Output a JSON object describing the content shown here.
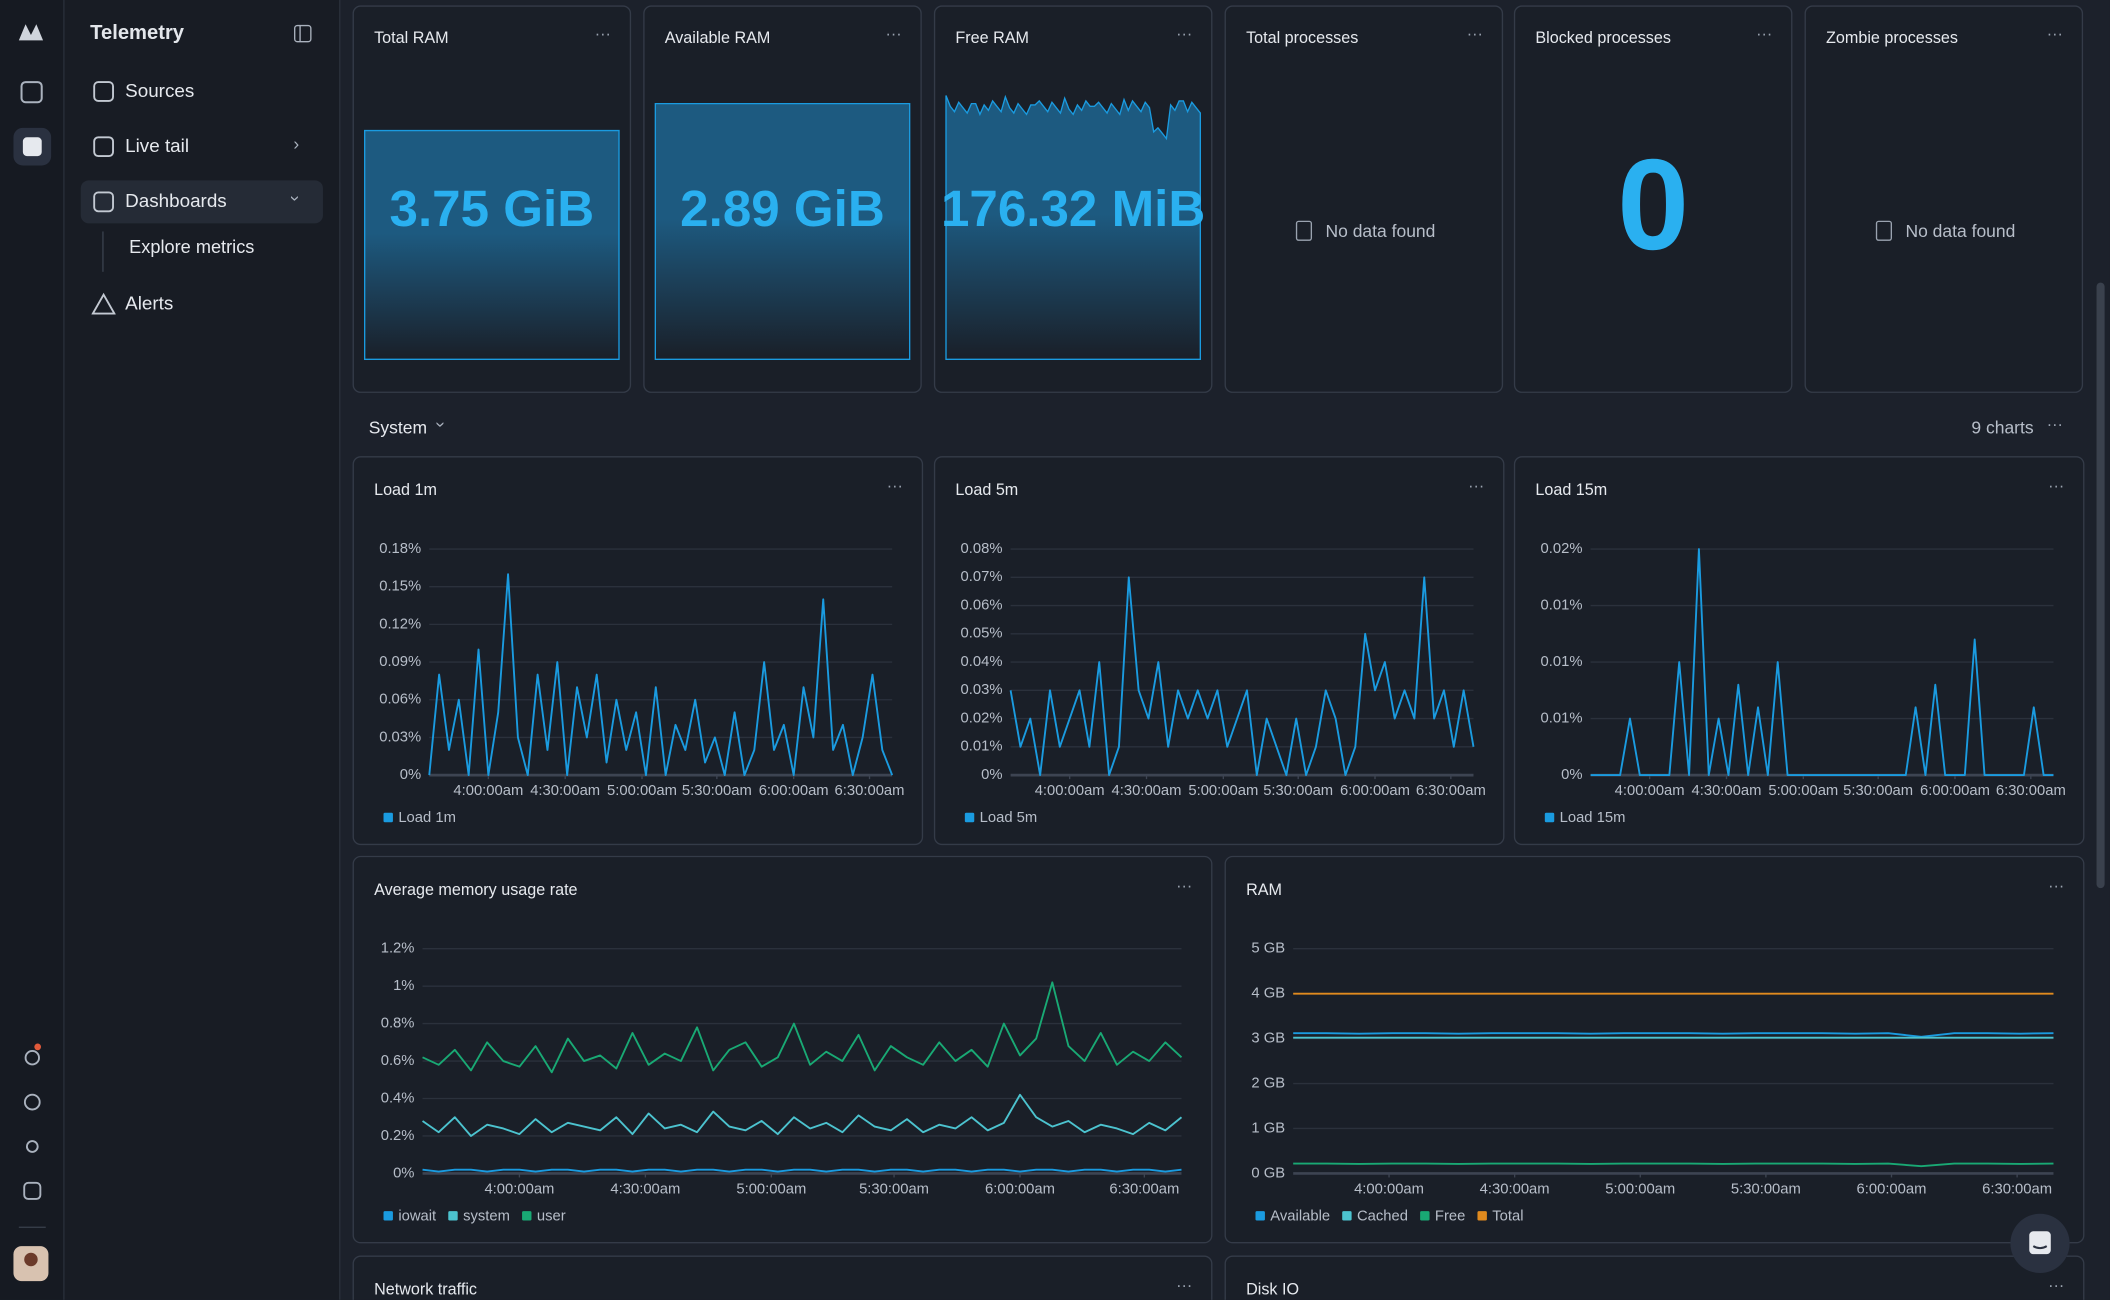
{
  "sidebar": {
    "brand": "Telemetry",
    "nav": [
      "Sources",
      "Live tail",
      "Dashboards",
      "Explore metrics",
      "Alerts"
    ]
  },
  "stats": [
    {
      "title": "Total RAM",
      "value": "3.75 GiB"
    },
    {
      "title": "Available RAM",
      "value": "2.89 GiB"
    },
    {
      "title": "Free RAM",
      "value": "176.32 MiB"
    },
    {
      "title": "Total processes",
      "empty": "No data found"
    },
    {
      "title": "Blocked processes",
      "value": "0"
    },
    {
      "title": "Zombie processes",
      "empty": "No data found"
    }
  ],
  "section": {
    "title": "System",
    "count": "9 charts"
  },
  "charts": [
    {
      "type": "line",
      "title": "Load 1m",
      "xlim": [
        0,
        47
      ],
      "xticks": [
        {
          "value": 6,
          "label": "4:00:00am"
        },
        {
          "value": 13.8,
          "label": "4:30:00am"
        },
        {
          "value": 21.6,
          "label": "5:00:00am"
        },
        {
          "value": 29.2,
          "label": "5:30:00am"
        },
        {
          "value": 37,
          "label": "6:00:00am"
        },
        {
          "value": 44.7,
          "label": "6:30:00am"
        }
      ],
      "ylim": [
        0,
        0.18
      ],
      "yticks": [
        {
          "value": 0,
          "label": "0%"
        },
        {
          "value": 0.03,
          "label": "0.03%"
        },
        {
          "value": 0.06,
          "label": "0.06%"
        },
        {
          "value": 0.09,
          "label": "0.09%"
        },
        {
          "value": 0.12,
          "label": "0.12%"
        },
        {
          "value": 0.15,
          "label": "0.15%"
        },
        {
          "value": 0.18,
          "label": "0.18%"
        }
      ],
      "series": [
        {
          "name": "Load 1m",
          "color": "#1a9be0",
          "values": [
            0,
            0.08,
            0.02,
            0.06,
            0,
            0.1,
            0,
            0.05,
            0.16,
            0.03,
            0,
            0.08,
            0.02,
            0.09,
            0,
            0.07,
            0.03,
            0.08,
            0.01,
            0.06,
            0.02,
            0.05,
            0,
            0.07,
            0,
            0.04,
            0.02,
            0.06,
            0.01,
            0.03,
            0,
            0.05,
            0,
            0.02,
            0.09,
            0.02,
            0.04,
            0,
            0.07,
            0.03,
            0.14,
            0.02,
            0.04,
            0,
            0.03,
            0.08,
            0.02,
            0
          ]
        }
      ]
    },
    {
      "type": "line",
      "title": "Load 5m",
      "xlim": [
        0,
        47
      ],
      "xticks": [
        {
          "value": 6,
          "label": "4:00:00am"
        },
        {
          "value": 13.8,
          "label": "4:30:00am"
        },
        {
          "value": 21.6,
          "label": "5:00:00am"
        },
        {
          "value": 29.2,
          "label": "5:30:00am"
        },
        {
          "value": 37,
          "label": "6:00:00am"
        },
        {
          "value": 44.7,
          "label": "6:30:00am"
        }
      ],
      "ylim": [
        0,
        0.08
      ],
      "yticks": [
        {
          "value": 0,
          "label": "0%"
        },
        {
          "value": 0.01,
          "label": "0.01%"
        },
        {
          "value": 0.02,
          "label": "0.02%"
        },
        {
          "value": 0.03,
          "label": "0.03%"
        },
        {
          "value": 0.04,
          "label": "0.04%"
        },
        {
          "value": 0.05,
          "label": "0.05%"
        },
        {
          "value": 0.06,
          "label": "0.06%"
        },
        {
          "value": 0.07,
          "label": "0.07%"
        },
        {
          "value": 0.08,
          "label": "0.08%"
        }
      ],
      "series": [
        {
          "name": "Load 5m",
          "color": "#1a9be0",
          "values": [
            0.03,
            0.01,
            0.02,
            0,
            0.03,
            0.01,
            0.02,
            0.03,
            0.01,
            0.04,
            0,
            0.01,
            0.07,
            0.03,
            0.02,
            0.04,
            0.01,
            0.03,
            0.02,
            0.03,
            0.02,
            0.03,
            0.01,
            0.02,
            0.03,
            0,
            0.02,
            0.01,
            0,
            0.02,
            0,
            0.01,
            0.03,
            0.02,
            0,
            0.01,
            0.05,
            0.03,
            0.04,
            0.02,
            0.03,
            0.02,
            0.07,
            0.02,
            0.03,
            0.01,
            0.03,
            0.01
          ]
        }
      ]
    },
    {
      "type": "line",
      "title": "Load 15m",
      "xlim": [
        0,
        47
      ],
      "xticks": [
        {
          "value": 6,
          "label": "4:00:00am"
        },
        {
          "value": 13.8,
          "label": "4:30:00am"
        },
        {
          "value": 21.6,
          "label": "5:00:00am"
        },
        {
          "value": 29.2,
          "label": "5:30:00am"
        },
        {
          "value": 37,
          "label": "6:00:00am"
        },
        {
          "value": 44.7,
          "label": "6:30:00am"
        }
      ],
      "ylim": [
        0,
        0.02
      ],
      "yticks": [
        {
          "value": 0,
          "label": "0%"
        },
        {
          "value": 0.005,
          "label": "0.01%"
        },
        {
          "value": 0.01,
          "label": "0.01%"
        },
        {
          "value": 0.015,
          "label": "0.01%"
        },
        {
          "value": 0.02,
          "label": "0.02%"
        }
      ],
      "series": [
        {
          "name": "Load 15m",
          "color": "#1a9be0",
          "values": [
            0,
            0,
            0,
            0,
            0.005,
            0,
            0,
            0,
            0,
            0.01,
            0,
            0.02,
            0,
            0.005,
            0,
            0.008,
            0,
            0.006,
            0,
            0.01,
            0,
            0,
            0,
            0,
            0,
            0,
            0,
            0,
            0,
            0,
            0,
            0,
            0,
            0.006,
            0,
            0.008,
            0,
            0,
            0,
            0.012,
            0,
            0,
            0,
            0,
            0,
            0.006,
            0,
            0
          ]
        }
      ]
    },
    {
      "type": "line",
      "title": "Average memory usage rate",
      "xlim": [
        0,
        47
      ],
      "xticks": [
        {
          "value": 6,
          "label": "4:00:00am"
        },
        {
          "value": 13.8,
          "label": "4:30:00am"
        },
        {
          "value": 21.6,
          "label": "5:00:00am"
        },
        {
          "value": 29.2,
          "label": "5:30:00am"
        },
        {
          "value": 37,
          "label": "6:00:00am"
        },
        {
          "value": 44.7,
          "label": "6:30:00am"
        }
      ],
      "ylim": [
        0,
        1.2
      ],
      "yticks": [
        {
          "value": 0,
          "label": "0%"
        },
        {
          "value": 0.2,
          "label": "0.2%"
        },
        {
          "value": 0.4,
          "label": "0.4%"
        },
        {
          "value": 0.6,
          "label": "0.6%"
        },
        {
          "value": 0.8,
          "label": "0.8%"
        },
        {
          "value": 1,
          "label": "1%"
        },
        {
          "value": 1.2,
          "label": "1.2%"
        }
      ],
      "series": [
        {
          "name": "iowait",
          "color": "#1a9be0",
          "values": [
            0.02,
            0.01,
            0.02,
            0.02,
            0.01,
            0.02,
            0.02,
            0.01,
            0.02,
            0.02,
            0.01,
            0.02,
            0.02,
            0.01,
            0.02,
            0.02,
            0.01,
            0.02,
            0.02,
            0.01,
            0.02,
            0.02,
            0.01,
            0.02,
            0.02,
            0.01,
            0.02,
            0.02,
            0.01,
            0.02,
            0.02,
            0.01,
            0.02,
            0.02,
            0.01,
            0.02,
            0.02,
            0.01,
            0.02,
            0.02,
            0.01,
            0.02,
            0.02,
            0.01,
            0.02,
            0.02,
            0.01,
            0.02
          ]
        },
        {
          "name": "system",
          "color": "#4cc3cf",
          "values": [
            0.28,
            0.22,
            0.3,
            0.2,
            0.26,
            0.24,
            0.21,
            0.29,
            0.22,
            0.27,
            0.25,
            0.23,
            0.3,
            0.21,
            0.32,
            0.24,
            0.26,
            0.22,
            0.33,
            0.25,
            0.23,
            0.28,
            0.21,
            0.3,
            0.24,
            0.27,
            0.22,
            0.31,
            0.25,
            0.23,
            0.29,
            0.22,
            0.26,
            0.24,
            0.3,
            0.23,
            0.27,
            0.42,
            0.3,
            0.25,
            0.28,
            0.22,
            0.26,
            0.24,
            0.21,
            0.27,
            0.23,
            0.3
          ]
        },
        {
          "name": "user",
          "color": "#19a974",
          "values": [
            0.62,
            0.58,
            0.66,
            0.55,
            0.7,
            0.6,
            0.57,
            0.68,
            0.54,
            0.72,
            0.6,
            0.63,
            0.56,
            0.75,
            0.58,
            0.64,
            0.6,
            0.78,
            0.55,
            0.66,
            0.7,
            0.57,
            0.62,
            0.8,
            0.58,
            0.65,
            0.6,
            0.74,
            0.55,
            0.68,
            0.62,
            0.58,
            0.7,
            0.6,
            0.66,
            0.57,
            0.8,
            0.63,
            0.72,
            1.02,
            0.68,
            0.6,
            0.75,
            0.58,
            0.65,
            0.6,
            0.7,
            0.62
          ]
        }
      ]
    },
    {
      "type": "line",
      "title": "RAM",
      "xlim": [
        0,
        23
      ],
      "xticks": [
        {
          "value": 2.9,
          "label": "4:00:00am"
        },
        {
          "value": 6.7,
          "label": "4:30:00am"
        },
        {
          "value": 10.5,
          "label": "5:00:00am"
        },
        {
          "value": 14.3,
          "label": "5:30:00am"
        },
        {
          "value": 18.1,
          "label": "6:00:00am"
        },
        {
          "value": 21.9,
          "label": "6:30:00am"
        }
      ],
      "ylim": [
        0,
        5
      ],
      "yticks": [
        {
          "value": 0,
          "label": "0 GB"
        },
        {
          "value": 1,
          "label": "1 GB"
        },
        {
          "value": 2,
          "label": "2 GB"
        },
        {
          "value": 3,
          "label": "3 GB"
        },
        {
          "value": 4,
          "label": "4 GB"
        },
        {
          "value": 5,
          "label": "5 GB"
        }
      ],
      "series": [
        {
          "name": "Available",
          "color": "#1a9be0",
          "values": [
            3.12,
            3.12,
            3.11,
            3.12,
            3.12,
            3.11,
            3.12,
            3.12,
            3.12,
            3.11,
            3.12,
            3.12,
            3.12,
            3.11,
            3.12,
            3.12,
            3.12,
            3.11,
            3.12,
            3.04,
            3.12,
            3.12,
            3.11,
            3.12
          ]
        },
        {
          "name": "Cached",
          "color": "#4cc3cf",
          "values": [
            3.02,
            3.02,
            3.02,
            3.02,
            3.02,
            3.02,
            3.02,
            3.02,
            3.02,
            3.02,
            3.02,
            3.02,
            3.02,
            3.02,
            3.02,
            3.02,
            3.02,
            3.02,
            3.02,
            3.02,
            3.02,
            3.02,
            3.02,
            3.02
          ]
        },
        {
          "name": "Free",
          "color": "#19a974",
          "values": [
            0.22,
            0.22,
            0.21,
            0.22,
            0.22,
            0.21,
            0.22,
            0.22,
            0.22,
            0.21,
            0.22,
            0.22,
            0.22,
            0.21,
            0.22,
            0.22,
            0.22,
            0.21,
            0.22,
            0.16,
            0.22,
            0.22,
            0.21,
            0.22
          ]
        },
        {
          "name": "Total",
          "color": "#e08a1e",
          "values": [
            4,
            4,
            4,
            4,
            4,
            4,
            4,
            4,
            4,
            4,
            4,
            4,
            4,
            4,
            4,
            4,
            4,
            4,
            4,
            4,
            4,
            4,
            4,
            4
          ]
        }
      ]
    }
  ],
  "panels": [
    "Network traffic",
    "Disk IO"
  ]
}
